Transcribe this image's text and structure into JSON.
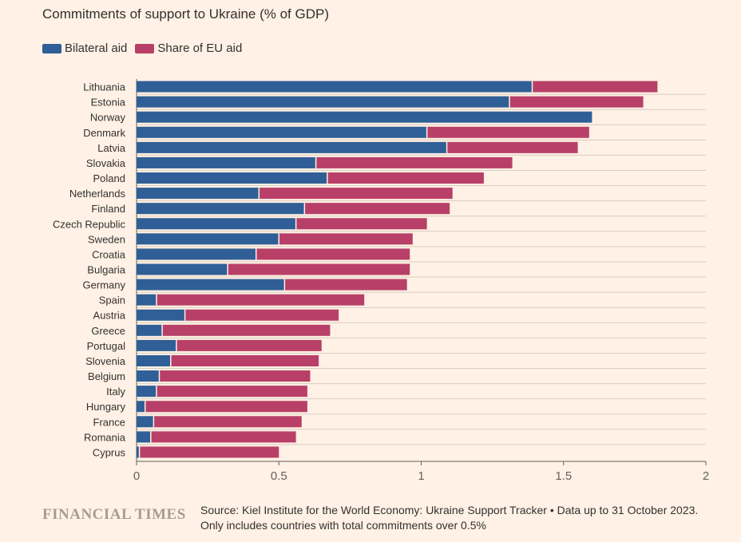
{
  "header": {
    "title": "Commitments of support to Ukraine (% of GDP)"
  },
  "legend": {
    "bilateral": "Bilateral aid",
    "eu": "Share of EU aid"
  },
  "colors": {
    "bilateral": "#2f5f96",
    "eu": "#b84068",
    "background": "#fff1e5",
    "grid": "#d9cbbf"
  },
  "footer": {
    "brand": "FINANCIAL TIMES",
    "source": "Source: Kiel Institute for the World Economy: Ukraine Support Tracker • Data up to 31 October 2023. Only includes countries with total commitments over 0.5%"
  },
  "chart_data": {
    "type": "bar",
    "orientation": "horizontal",
    "stacked": true,
    "title": "Commitments of support to Ukraine (% of GDP)",
    "categories": [
      "Lithuania",
      "Estonia",
      "Norway",
      "Denmark",
      "Latvia",
      "Slovakia",
      "Poland",
      "Netherlands",
      "Finland",
      "Czech Republic",
      "Sweden",
      "Croatia",
      "Bulgaria",
      "Germany",
      "Spain",
      "Austria",
      "Greece",
      "Portugal",
      "Slovenia",
      "Belgium",
      "Italy",
      "Hungary",
      "France",
      "Romania",
      "Cyprus"
    ],
    "series": [
      {
        "name": "Bilateral aid",
        "values": [
          1.39,
          1.31,
          1.6,
          1.02,
          1.09,
          0.63,
          0.67,
          0.43,
          0.59,
          0.56,
          0.5,
          0.42,
          0.32,
          0.52,
          0.07,
          0.17,
          0.09,
          0.14,
          0.12,
          0.08,
          0.07,
          0.03,
          0.06,
          0.05,
          0.01
        ]
      },
      {
        "name": "Share of EU aid",
        "values": [
          0.44,
          0.47,
          0.0,
          0.57,
          0.46,
          0.69,
          0.55,
          0.68,
          0.51,
          0.46,
          0.47,
          0.54,
          0.64,
          0.43,
          0.73,
          0.54,
          0.59,
          0.51,
          0.52,
          0.53,
          0.53,
          0.57,
          0.52,
          0.51,
          0.49
        ]
      }
    ],
    "xlim": [
      0,
      2
    ],
    "xticks": [
      "0",
      "0.5",
      "1",
      "1.5",
      "2"
    ],
    "grid": true,
    "legend_position": "top-left"
  }
}
